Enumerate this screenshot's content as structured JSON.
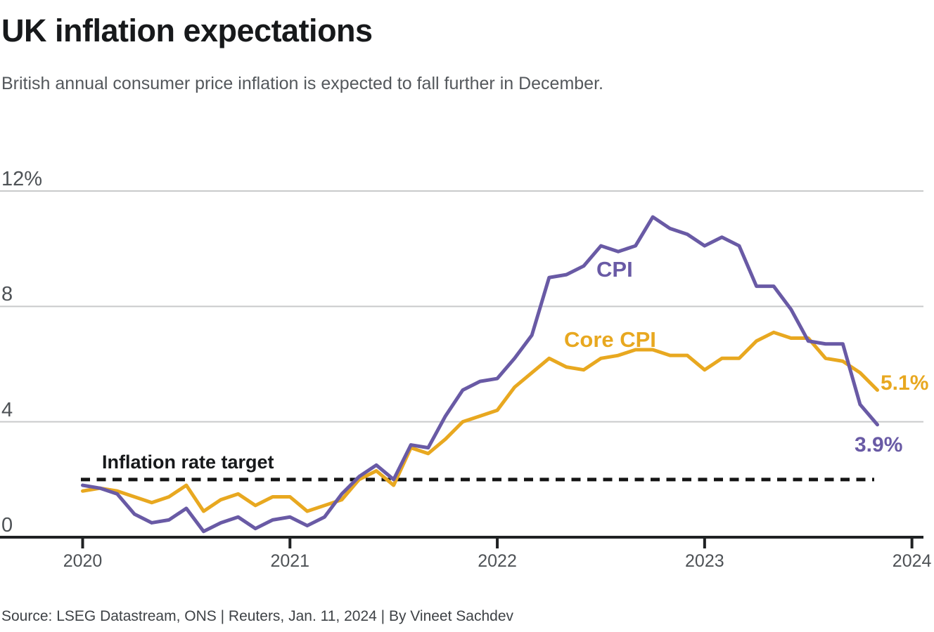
{
  "header": {
    "title": "UK inflation expectations",
    "subtitle": "British annual consumer price inflation is expected to fall further in December."
  },
  "footer": {
    "source": "Source: LSEG Datastream, ONS | Reuters, Jan. 11, 2024 | By Vineet Sachdev"
  },
  "colors": {
    "cpi": "#695aa5",
    "core_cpi": "#e8a820",
    "grid": "#c9cacb",
    "axis": "#1f2123",
    "target_line": "#141414",
    "tick_text": "#4e5256"
  },
  "chart_data": {
    "type": "line",
    "title": "UK inflation expectations",
    "xlabel": "",
    "ylabel": "",
    "ylim": [
      0,
      12
    ],
    "grid": "horizontal",
    "legend_position": "inline",
    "x_unit": "month",
    "x": [
      "2020-01",
      "2020-02",
      "2020-03",
      "2020-04",
      "2020-05",
      "2020-06",
      "2020-07",
      "2020-08",
      "2020-09",
      "2020-10",
      "2020-11",
      "2020-12",
      "2021-01",
      "2021-02",
      "2021-03",
      "2021-04",
      "2021-05",
      "2021-06",
      "2021-07",
      "2021-08",
      "2021-09",
      "2021-10",
      "2021-11",
      "2021-12",
      "2022-01",
      "2022-02",
      "2022-03",
      "2022-04",
      "2022-05",
      "2022-06",
      "2022-07",
      "2022-08",
      "2022-09",
      "2022-10",
      "2022-11",
      "2022-12",
      "2023-01",
      "2023-02",
      "2023-03",
      "2023-04",
      "2023-05",
      "2023-06",
      "2023-07",
      "2023-08",
      "2023-09",
      "2023-10",
      "2023-11"
    ],
    "series": [
      {
        "name": "CPI",
        "color": "#695aa5",
        "end_label": "3.9%",
        "values": [
          1.8,
          1.7,
          1.5,
          0.8,
          0.5,
          0.6,
          1.0,
          0.2,
          0.5,
          0.7,
          0.3,
          0.6,
          0.7,
          0.4,
          0.7,
          1.5,
          2.1,
          2.5,
          2.0,
          3.2,
          3.1,
          4.2,
          5.1,
          5.4,
          5.5,
          6.2,
          7.0,
          9.0,
          9.1,
          9.4,
          10.1,
          9.9,
          10.1,
          11.1,
          10.7,
          10.5,
          10.1,
          10.4,
          10.1,
          8.7,
          8.7,
          7.9,
          6.8,
          6.7,
          6.7,
          4.6,
          3.9
        ]
      },
      {
        "name": "Core CPI",
        "color": "#e8a820",
        "end_label": "5.1%",
        "values": [
          1.6,
          1.7,
          1.6,
          1.4,
          1.2,
          1.4,
          1.8,
          0.9,
          1.3,
          1.5,
          1.1,
          1.4,
          1.4,
          0.9,
          1.1,
          1.3,
          2.0,
          2.3,
          1.8,
          3.1,
          2.9,
          3.4,
          4.0,
          4.2,
          4.4,
          5.2,
          5.7,
          6.2,
          5.9,
          5.8,
          6.2,
          6.3,
          6.5,
          6.5,
          6.3,
          6.3,
          5.8,
          6.2,
          6.2,
          6.8,
          7.1,
          6.9,
          6.9,
          6.2,
          6.1,
          5.7,
          5.1
        ]
      }
    ],
    "y_ticks": [
      {
        "label": "12%",
        "value": 12
      },
      {
        "label": "8",
        "value": 8
      },
      {
        "label": "4",
        "value": 4
      },
      {
        "label": "0",
        "value": 0
      }
    ],
    "x_ticks": [
      {
        "label": "2020",
        "month_index": 0
      },
      {
        "label": "2021",
        "month_index": 12
      },
      {
        "label": "2022",
        "month_index": 24
      },
      {
        "label": "2023",
        "month_index": 36
      },
      {
        "label": "2024",
        "month_index": 48
      }
    ],
    "target_line": {
      "label": "Inflation rate target",
      "value": 2
    }
  }
}
